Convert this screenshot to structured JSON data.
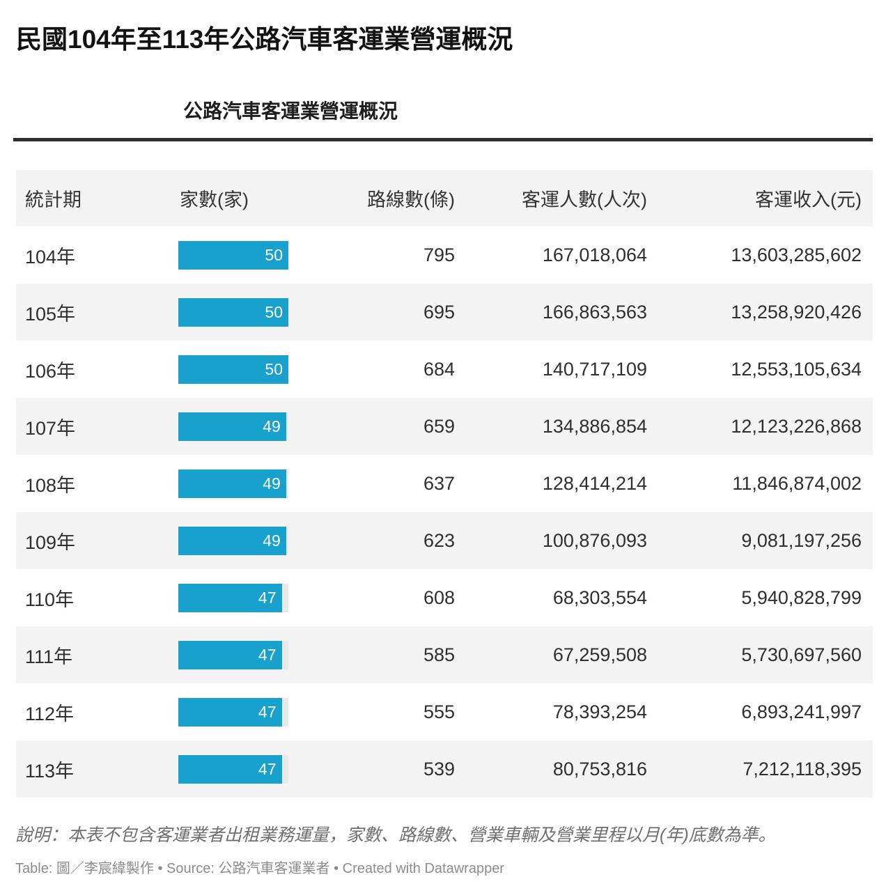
{
  "header": {
    "title": "民國104年至113年公路汽車客運業營運概況",
    "subtitle": "公路汽車客運業營運概況"
  },
  "table": {
    "columns": [
      "統計期",
      "家數(家)",
      "路線數(條)",
      "客運人數(人次)",
      "客運收入(元)"
    ],
    "bar_max": 50,
    "bar_color": "#18a1cd",
    "bar_track_color": "#e9e9e9",
    "stripe_color": "#f4f4f4",
    "rows": [
      {
        "period": "104年",
        "companies": 50,
        "routes": "795",
        "passengers": "167,018,064",
        "revenue": "13,603,285,602"
      },
      {
        "period": "105年",
        "companies": 50,
        "routes": "695",
        "passengers": "166,863,563",
        "revenue": "13,258,920,426"
      },
      {
        "period": "106年",
        "companies": 50,
        "routes": "684",
        "passengers": "140,717,109",
        "revenue": "12,553,105,634"
      },
      {
        "period": "107年",
        "companies": 49,
        "routes": "659",
        "passengers": "134,886,854",
        "revenue": "12,123,226,868"
      },
      {
        "period": "108年",
        "companies": 49,
        "routes": "637",
        "passengers": "128,414,214",
        "revenue": "11,846,874,002"
      },
      {
        "period": "109年",
        "companies": 49,
        "routes": "623",
        "passengers": "100,876,093",
        "revenue": "9,081,197,256"
      },
      {
        "period": "110年",
        "companies": 47,
        "routes": "608",
        "passengers": "68,303,554",
        "revenue": "5,940,828,799"
      },
      {
        "period": "111年",
        "companies": 47,
        "routes": "585",
        "passengers": "67,259,508",
        "revenue": "5,730,697,560"
      },
      {
        "period": "112年",
        "companies": 47,
        "routes": "555",
        "passengers": "78,393,254",
        "revenue": "6,893,241,997"
      },
      {
        "period": "113年",
        "companies": 47,
        "routes": "539",
        "passengers": "80,753,816",
        "revenue": "7,212,118,395"
      }
    ]
  },
  "footer": {
    "note": "說明：本表不包含客運業者出租業務運量，家數、路線數、營業車輛及營業里程以月(年)底數為準。",
    "caption": "Table: 圖／李宸緯製作 • Source: 公路汽車客運業者 • Created with Datawrapper"
  },
  "chart_data": {
    "type": "table",
    "title": "民國104年至113年公路汽車客運業營運概況",
    "subtitle": "公路汽車客運業營運概況",
    "columns": [
      "統計期",
      "家數(家)",
      "路線數(條)",
      "客運人數(人次)",
      "客運收入(元)"
    ],
    "rows": [
      [
        "104年",
        50,
        795,
        167018064,
        13603285602
      ],
      [
        "105年",
        50,
        695,
        166863563,
        13258920426
      ],
      [
        "106年",
        50,
        684,
        140717109,
        12553105634
      ],
      [
        "107年",
        49,
        659,
        134886854,
        12123226868
      ],
      [
        "108年",
        49,
        637,
        128414214,
        11846874002
      ],
      [
        "109年",
        49,
        623,
        100876093,
        9081197256
      ],
      [
        "110年",
        47,
        608,
        68303554,
        5940828799
      ],
      [
        "111年",
        47,
        585,
        67259508,
        5730697560
      ],
      [
        "112年",
        47,
        555,
        78393254,
        6893241997
      ],
      [
        "113年",
        47,
        539,
        80753816,
        7212118395
      ]
    ],
    "bar_column": "家數(家)",
    "bar_range": [
      0,
      50
    ],
    "bar_color": "#18a1cd",
    "note": "說明：本表不包含客運業者出租業務運量，家數、路線數、營業車輛及營業里程以月(年)底數為準。",
    "source": "公路汽車客運業者",
    "credit": "Created with Datawrapper"
  }
}
